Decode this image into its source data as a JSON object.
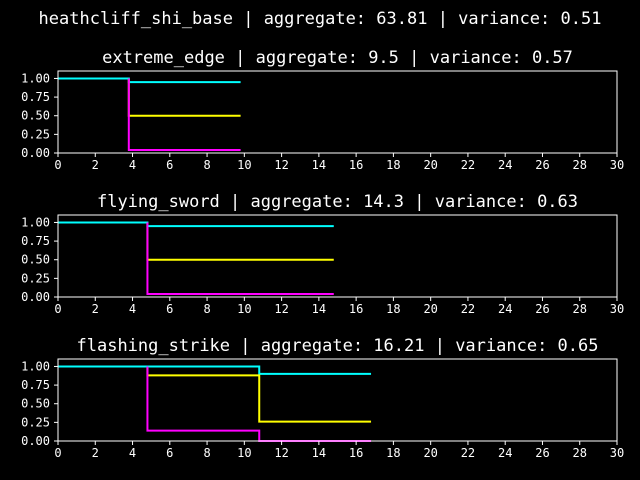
{
  "figure": {
    "suptitle": "heathcliff_shi_base | aggregate: 63.81 | variance: 0.51",
    "background": "#000000",
    "foreground": "#ffffff"
  },
  "chart_data": [
    {
      "type": "line",
      "step": true,
      "title": "extreme_edge | aggregate: 9.5 | variance: 0.57",
      "xlim": [
        0,
        30
      ],
      "ylim": [
        0,
        1.1
      ],
      "xticks": [
        "0",
        "2",
        "4",
        "6",
        "8",
        "10",
        "12",
        "14",
        "16",
        "18",
        "20",
        "22",
        "24",
        "26",
        "28",
        "30"
      ],
      "yticks": [
        "0.00",
        "0.25",
        "0.50",
        "0.75",
        "1.00"
      ],
      "series": [
        {
          "color": "#00ffff",
          "x": [
            0,
            3.8,
            9.8
          ],
          "y": [
            1.0,
            0.95,
            0.95
          ]
        },
        {
          "color": "#ffff00",
          "x": [
            3.8,
            3.8,
            9.8
          ],
          "y": [
            1.0,
            0.5,
            0.5
          ]
        },
        {
          "color": "#ff00ff",
          "x": [
            3.8,
            3.8,
            9.8
          ],
          "y": [
            1.0,
            0.04,
            0.04
          ]
        }
      ]
    },
    {
      "type": "line",
      "step": true,
      "title": "flying_sword | aggregate: 14.3 | variance: 0.63",
      "xlim": [
        0,
        30
      ],
      "ylim": [
        0,
        1.1
      ],
      "xticks": [
        "0",
        "2",
        "4",
        "6",
        "8",
        "10",
        "12",
        "14",
        "16",
        "18",
        "20",
        "22",
        "24",
        "26",
        "28",
        "30"
      ],
      "yticks": [
        "0.00",
        "0.25",
        "0.50",
        "0.75",
        "1.00"
      ],
      "series": [
        {
          "color": "#00ffff",
          "x": [
            0,
            4.8,
            14.8
          ],
          "y": [
            1.0,
            0.95,
            0.95
          ]
        },
        {
          "color": "#ffff00",
          "x": [
            4.8,
            4.8,
            14.8
          ],
          "y": [
            1.0,
            0.5,
            0.5
          ]
        },
        {
          "color": "#ff00ff",
          "x": [
            4.8,
            4.8,
            14.8
          ],
          "y": [
            1.0,
            0.04,
            0.04
          ]
        }
      ]
    },
    {
      "type": "line",
      "step": true,
      "title": "flashing_strike | aggregate: 16.21 | variance: 0.65",
      "xlim": [
        0,
        30
      ],
      "ylim": [
        0,
        1.1
      ],
      "xticks": [
        "0",
        "2",
        "4",
        "6",
        "8",
        "10",
        "12",
        "14",
        "16",
        "18",
        "20",
        "22",
        "24",
        "26",
        "28",
        "30"
      ],
      "yticks": [
        "0.00",
        "0.25",
        "0.50",
        "0.75",
        "1.00"
      ],
      "series": [
        {
          "color": "#00ffff",
          "x": [
            0,
            10.8,
            16.8
          ],
          "y": [
            1.0,
            0.9,
            0.9
          ]
        },
        {
          "color": "#ffff00",
          "x": [
            4.8,
            4.8,
            10.8,
            10.8,
            16.8
          ],
          "y": [
            1.0,
            0.88,
            0.88,
            0.26,
            0.26
          ]
        },
        {
          "color": "#ff00ff",
          "x": [
            4.8,
            4.8,
            10.8,
            10.8,
            16.8
          ],
          "y": [
            1.0,
            0.14,
            0.14,
            0.0,
            0.0
          ]
        }
      ]
    }
  ]
}
